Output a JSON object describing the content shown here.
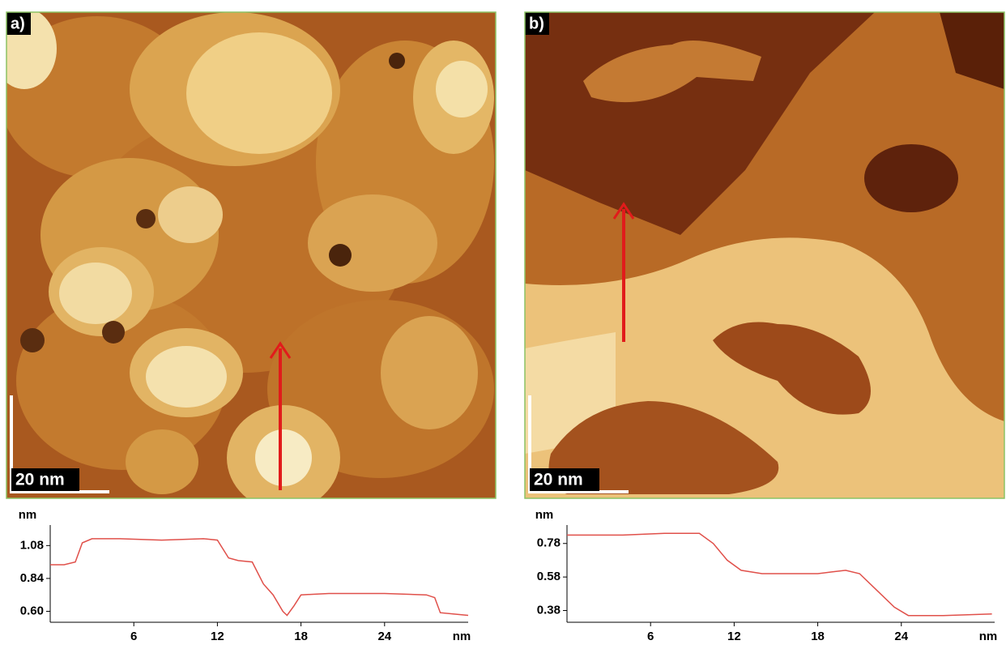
{
  "panels": [
    {
      "label": "a)",
      "scale_bar": "20 nm"
    },
    {
      "label": "b)",
      "scale_bar": "20 nm"
    }
  ],
  "chart_data": [
    {
      "type": "line",
      "x_label": "nm",
      "y_label": "nm",
      "x": [
        0,
        1,
        1.8,
        2.3,
        3,
        5,
        8,
        11,
        12,
        12.8,
        13.5,
        14.5,
        15.3,
        16,
        16.7,
        17,
        17.5,
        18,
        20,
        24,
        27,
        27.6,
        28,
        29,
        30
      ],
      "series": [
        {
          "color": "#e0504a",
          "values": [
            0.94,
            0.94,
            0.96,
            1.1,
            1.13,
            1.13,
            1.12,
            1.13,
            1.12,
            0.99,
            0.97,
            0.96,
            0.8,
            0.72,
            0.6,
            0.57,
            0.64,
            0.72,
            0.73,
            0.73,
            0.72,
            0.7,
            0.59,
            0.58,
            0.57
          ]
        }
      ],
      "xlim": [
        0,
        30
      ],
      "xticks": [
        6,
        12,
        18,
        24
      ],
      "ylim": [
        0.52,
        1.23
      ],
      "yticks": [
        {
          "value": 0.6,
          "label": "0.60"
        },
        0.84,
        1.08
      ]
    },
    {
      "type": "line",
      "x_label": "nm",
      "y_label": "nm",
      "x": [
        0,
        4,
        7,
        9.5,
        10.5,
        11.5,
        12.5,
        14,
        18,
        19,
        20,
        21,
        22,
        23.5,
        24.5,
        27,
        30.5
      ],
      "series": [
        {
          "color": "#e0504a",
          "values": [
            0.83,
            0.83,
            0.84,
            0.84,
            0.78,
            0.68,
            0.62,
            0.6,
            0.6,
            0.61,
            0.62,
            0.6,
            0.52,
            0.4,
            0.35,
            0.35,
            0.36
          ]
        }
      ],
      "xlim": [
        0,
        30.7
      ],
      "xticks": [
        6,
        12,
        18,
        24
      ],
      "ylim": [
        0.31,
        0.89
      ],
      "yticks": [
        0.38,
        0.58,
        0.78
      ]
    }
  ]
}
